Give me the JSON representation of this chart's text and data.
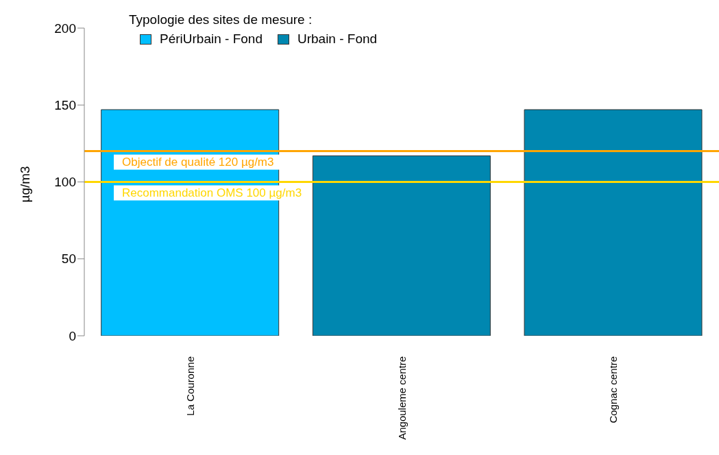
{
  "chart_data": {
    "type": "bar",
    "stacked": true,
    "ylabel": "µg/m3",
    "legend_title": "Typologie des sites de mesure :",
    "legend": "top",
    "categories": [
      "La Couronne",
      "Angouleme centre",
      "Cognac centre"
    ],
    "series": [
      {
        "name": "PériUrbain - Fond",
        "color": "#00bfff",
        "values": [
          147,
          null,
          null
        ]
      },
      {
        "name": "Urbain - Fond",
        "color": "#0087b0",
        "values": [
          null,
          117,
          147
        ]
      }
    ],
    "ylim": [
      0,
      200
    ],
    "yticks": [
      0,
      50,
      100,
      150,
      200
    ],
    "grid": false,
    "ref_lines": [
      {
        "axis": "y",
        "value": 120,
        "label": "Objectif de qualité 120 µg/m3",
        "color": "#ffa500"
      },
      {
        "axis": "y",
        "value": 100,
        "label": "Recommandation OMS 100 µg/m3",
        "color": "#ffd700"
      }
    ]
  }
}
